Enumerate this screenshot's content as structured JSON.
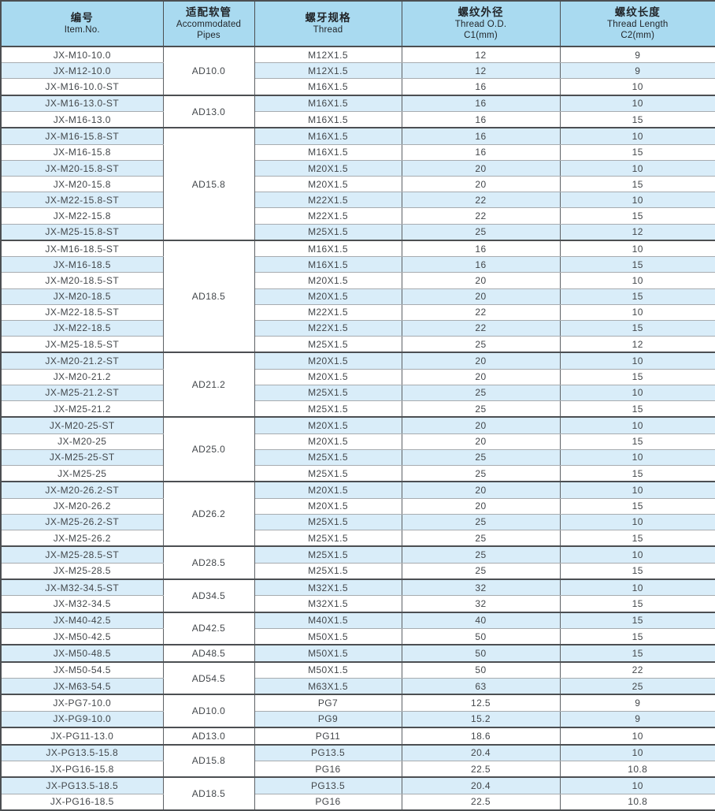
{
  "colors": {
    "header_bg": "#a9daf0",
    "stripe_bg": "#d9edf9",
    "row_bg": "#ffffff",
    "border_dark": "#4c4f52",
    "border_row": "#a7acb0",
    "border_col": "#5d6165",
    "text": "#43474b",
    "header_text": "#22262a"
  },
  "table": {
    "columns": [
      {
        "zh": "编号",
        "en": "Item.No."
      },
      {
        "zh": "适配软管",
        "en": "Accommodated Pipes"
      },
      {
        "zh": "螺牙规格",
        "en": "Thread"
      },
      {
        "zh": "螺纹外径",
        "en": "Thread O.D.",
        "sub": "C1(mm)"
      },
      {
        "zh": "螺纹长度",
        "en": "Thread Length",
        "sub": "C2(mm)"
      }
    ],
    "groups": [
      {
        "pipe": "AD10.0",
        "rows": [
          {
            "item": "JX-M10-10.0",
            "thread": "M12X1.5",
            "od": "12",
            "len": "9"
          },
          {
            "item": "JX-M12-10.0",
            "thread": "M12X1.5",
            "od": "12",
            "len": "9"
          },
          {
            "item": "JX-M16-10.0-ST",
            "thread": "M16X1.5",
            "od": "16",
            "len": "10"
          }
        ]
      },
      {
        "pipe": "AD13.0",
        "rows": [
          {
            "item": "JX-M16-13.0-ST",
            "thread": "M16X1.5",
            "od": "16",
            "len": "10"
          },
          {
            "item": "JX-M16-13.0",
            "thread": "M16X1.5",
            "od": "16",
            "len": "15"
          }
        ]
      },
      {
        "pipe": "AD15.8",
        "rows": [
          {
            "item": "JX-M16-15.8-ST",
            "thread": "M16X1.5",
            "od": "16",
            "len": "10"
          },
          {
            "item": "JX-M16-15.8",
            "thread": "M16X1.5",
            "od": "16",
            "len": "15"
          },
          {
            "item": "JX-M20-15.8-ST",
            "thread": "M20X1.5",
            "od": "20",
            "len": "10"
          },
          {
            "item": "JX-M20-15.8",
            "thread": "M20X1.5",
            "od": "20",
            "len": "15"
          },
          {
            "item": "JX-M22-15.8-ST",
            "thread": "M22X1.5",
            "od": "22",
            "len": "10"
          },
          {
            "item": "JX-M22-15.8",
            "thread": "M22X1.5",
            "od": "22",
            "len": "15"
          },
          {
            "item": "JX-M25-15.8-ST",
            "thread": "M25X1.5",
            "od": "25",
            "len": "12"
          }
        ]
      },
      {
        "pipe": "AD18.5",
        "rows": [
          {
            "item": "JX-M16-18.5-ST",
            "thread": "M16X1.5",
            "od": "16",
            "len": "10"
          },
          {
            "item": "JX-M16-18.5",
            "thread": "M16X1.5",
            "od": "16",
            "len": "15"
          },
          {
            "item": "JX-M20-18.5-ST",
            "thread": "M20X1.5",
            "od": "20",
            "len": "10"
          },
          {
            "item": "JX-M20-18.5",
            "thread": "M20X1.5",
            "od": "20",
            "len": "15"
          },
          {
            "item": "JX-M22-18.5-ST",
            "thread": "M22X1.5",
            "od": "22",
            "len": "10"
          },
          {
            "item": "JX-M22-18.5",
            "thread": "M22X1.5",
            "od": "22",
            "len": "15"
          },
          {
            "item": "JX-M25-18.5-ST",
            "thread": "M25X1.5",
            "od": "25",
            "len": "12"
          }
        ]
      },
      {
        "pipe": "AD21.2",
        "rows": [
          {
            "item": "JX-M20-21.2-ST",
            "thread": "M20X1.5",
            "od": "20",
            "len": "10"
          },
          {
            "item": "JX-M20-21.2",
            "thread": "M20X1.5",
            "od": "20",
            "len": "15"
          },
          {
            "item": "JX-M25-21.2-ST",
            "thread": "M25X1.5",
            "od": "25",
            "len": "10"
          },
          {
            "item": "JX-M25-21.2",
            "thread": "M25X1.5",
            "od": "25",
            "len": "15"
          }
        ]
      },
      {
        "pipe": "AD25.0",
        "rows": [
          {
            "item": "JX-M20-25-ST",
            "thread": "M20X1.5",
            "od": "20",
            "len": "10"
          },
          {
            "item": "JX-M20-25",
            "thread": "M20X1.5",
            "od": "20",
            "len": "15"
          },
          {
            "item": "JX-M25-25-ST",
            "thread": "M25X1.5",
            "od": "25",
            "len": "10"
          },
          {
            "item": "JX-M25-25",
            "thread": "M25X1.5",
            "od": "25",
            "len": "15"
          }
        ]
      },
      {
        "pipe": "AD26.2",
        "rows": [
          {
            "item": "JX-M20-26.2-ST",
            "thread": "M20X1.5",
            "od": "20",
            "len": "10"
          },
          {
            "item": "JX-M20-26.2",
            "thread": "M20X1.5",
            "od": "20",
            "len": "15"
          },
          {
            "item": "JX-M25-26.2-ST",
            "thread": "M25X1.5",
            "od": "25",
            "len": "10"
          },
          {
            "item": "JX-M25-26.2",
            "thread": "M25X1.5",
            "od": "25",
            "len": "15"
          }
        ]
      },
      {
        "pipe": "AD28.5",
        "rows": [
          {
            "item": "JX-M25-28.5-ST",
            "thread": "M25X1.5",
            "od": "25",
            "len": "10"
          },
          {
            "item": "JX-M25-28.5",
            "thread": "M25X1.5",
            "od": "25",
            "len": "15"
          }
        ]
      },
      {
        "pipe": "AD34.5",
        "rows": [
          {
            "item": "JX-M32-34.5-ST",
            "thread": "M32X1.5",
            "od": "32",
            "len": "10"
          },
          {
            "item": "JX-M32-34.5",
            "thread": "M32X1.5",
            "od": "32",
            "len": "15"
          }
        ]
      },
      {
        "pipe": "AD42.5",
        "rows": [
          {
            "item": "JX-M40-42.5",
            "thread": "M40X1.5",
            "od": "40",
            "len": "15"
          },
          {
            "item": "JX-M50-42.5",
            "thread": "M50X1.5",
            "od": "50",
            "len": "15"
          }
        ]
      },
      {
        "pipe": "AD48.5",
        "rows": [
          {
            "item": "JX-M50-48.5",
            "thread": "M50X1.5",
            "od": "50",
            "len": "15"
          }
        ]
      },
      {
        "pipe": "AD54.5",
        "rows": [
          {
            "item": "JX-M50-54.5",
            "thread": "M50X1.5",
            "od": "50",
            "len": "22"
          },
          {
            "item": "JX-M63-54.5",
            "thread": "M63X1.5",
            "od": "63",
            "len": "25"
          }
        ]
      },
      {
        "pipe": "AD10.0",
        "rows": [
          {
            "item": "JX-PG7-10.0",
            "thread": "PG7",
            "od": "12.5",
            "len": "9"
          },
          {
            "item": "JX-PG9-10.0",
            "thread": "PG9",
            "od": "15.2",
            "len": "9"
          }
        ]
      },
      {
        "pipe": "AD13.0",
        "rows": [
          {
            "item": "JX-PG11-13.0",
            "thread": "PG11",
            "od": "18.6",
            "len": "10"
          }
        ]
      },
      {
        "pipe": "AD15.8",
        "rows": [
          {
            "item": "JX-PG13.5-15.8",
            "thread": "PG13.5",
            "od": "20.4",
            "len": "10"
          },
          {
            "item": "JX-PG16-15.8",
            "thread": "PG16",
            "od": "22.5",
            "len": "10.8"
          }
        ]
      },
      {
        "pipe": "AD18.5",
        "rows": [
          {
            "item": "JX-PG13.5-18.5",
            "thread": "PG13.5",
            "od": "20.4",
            "len": "10"
          },
          {
            "item": "JX-PG16-18.5",
            "thread": "PG16",
            "od": "22.5",
            "len": "10.8"
          }
        ]
      }
    ]
  }
}
